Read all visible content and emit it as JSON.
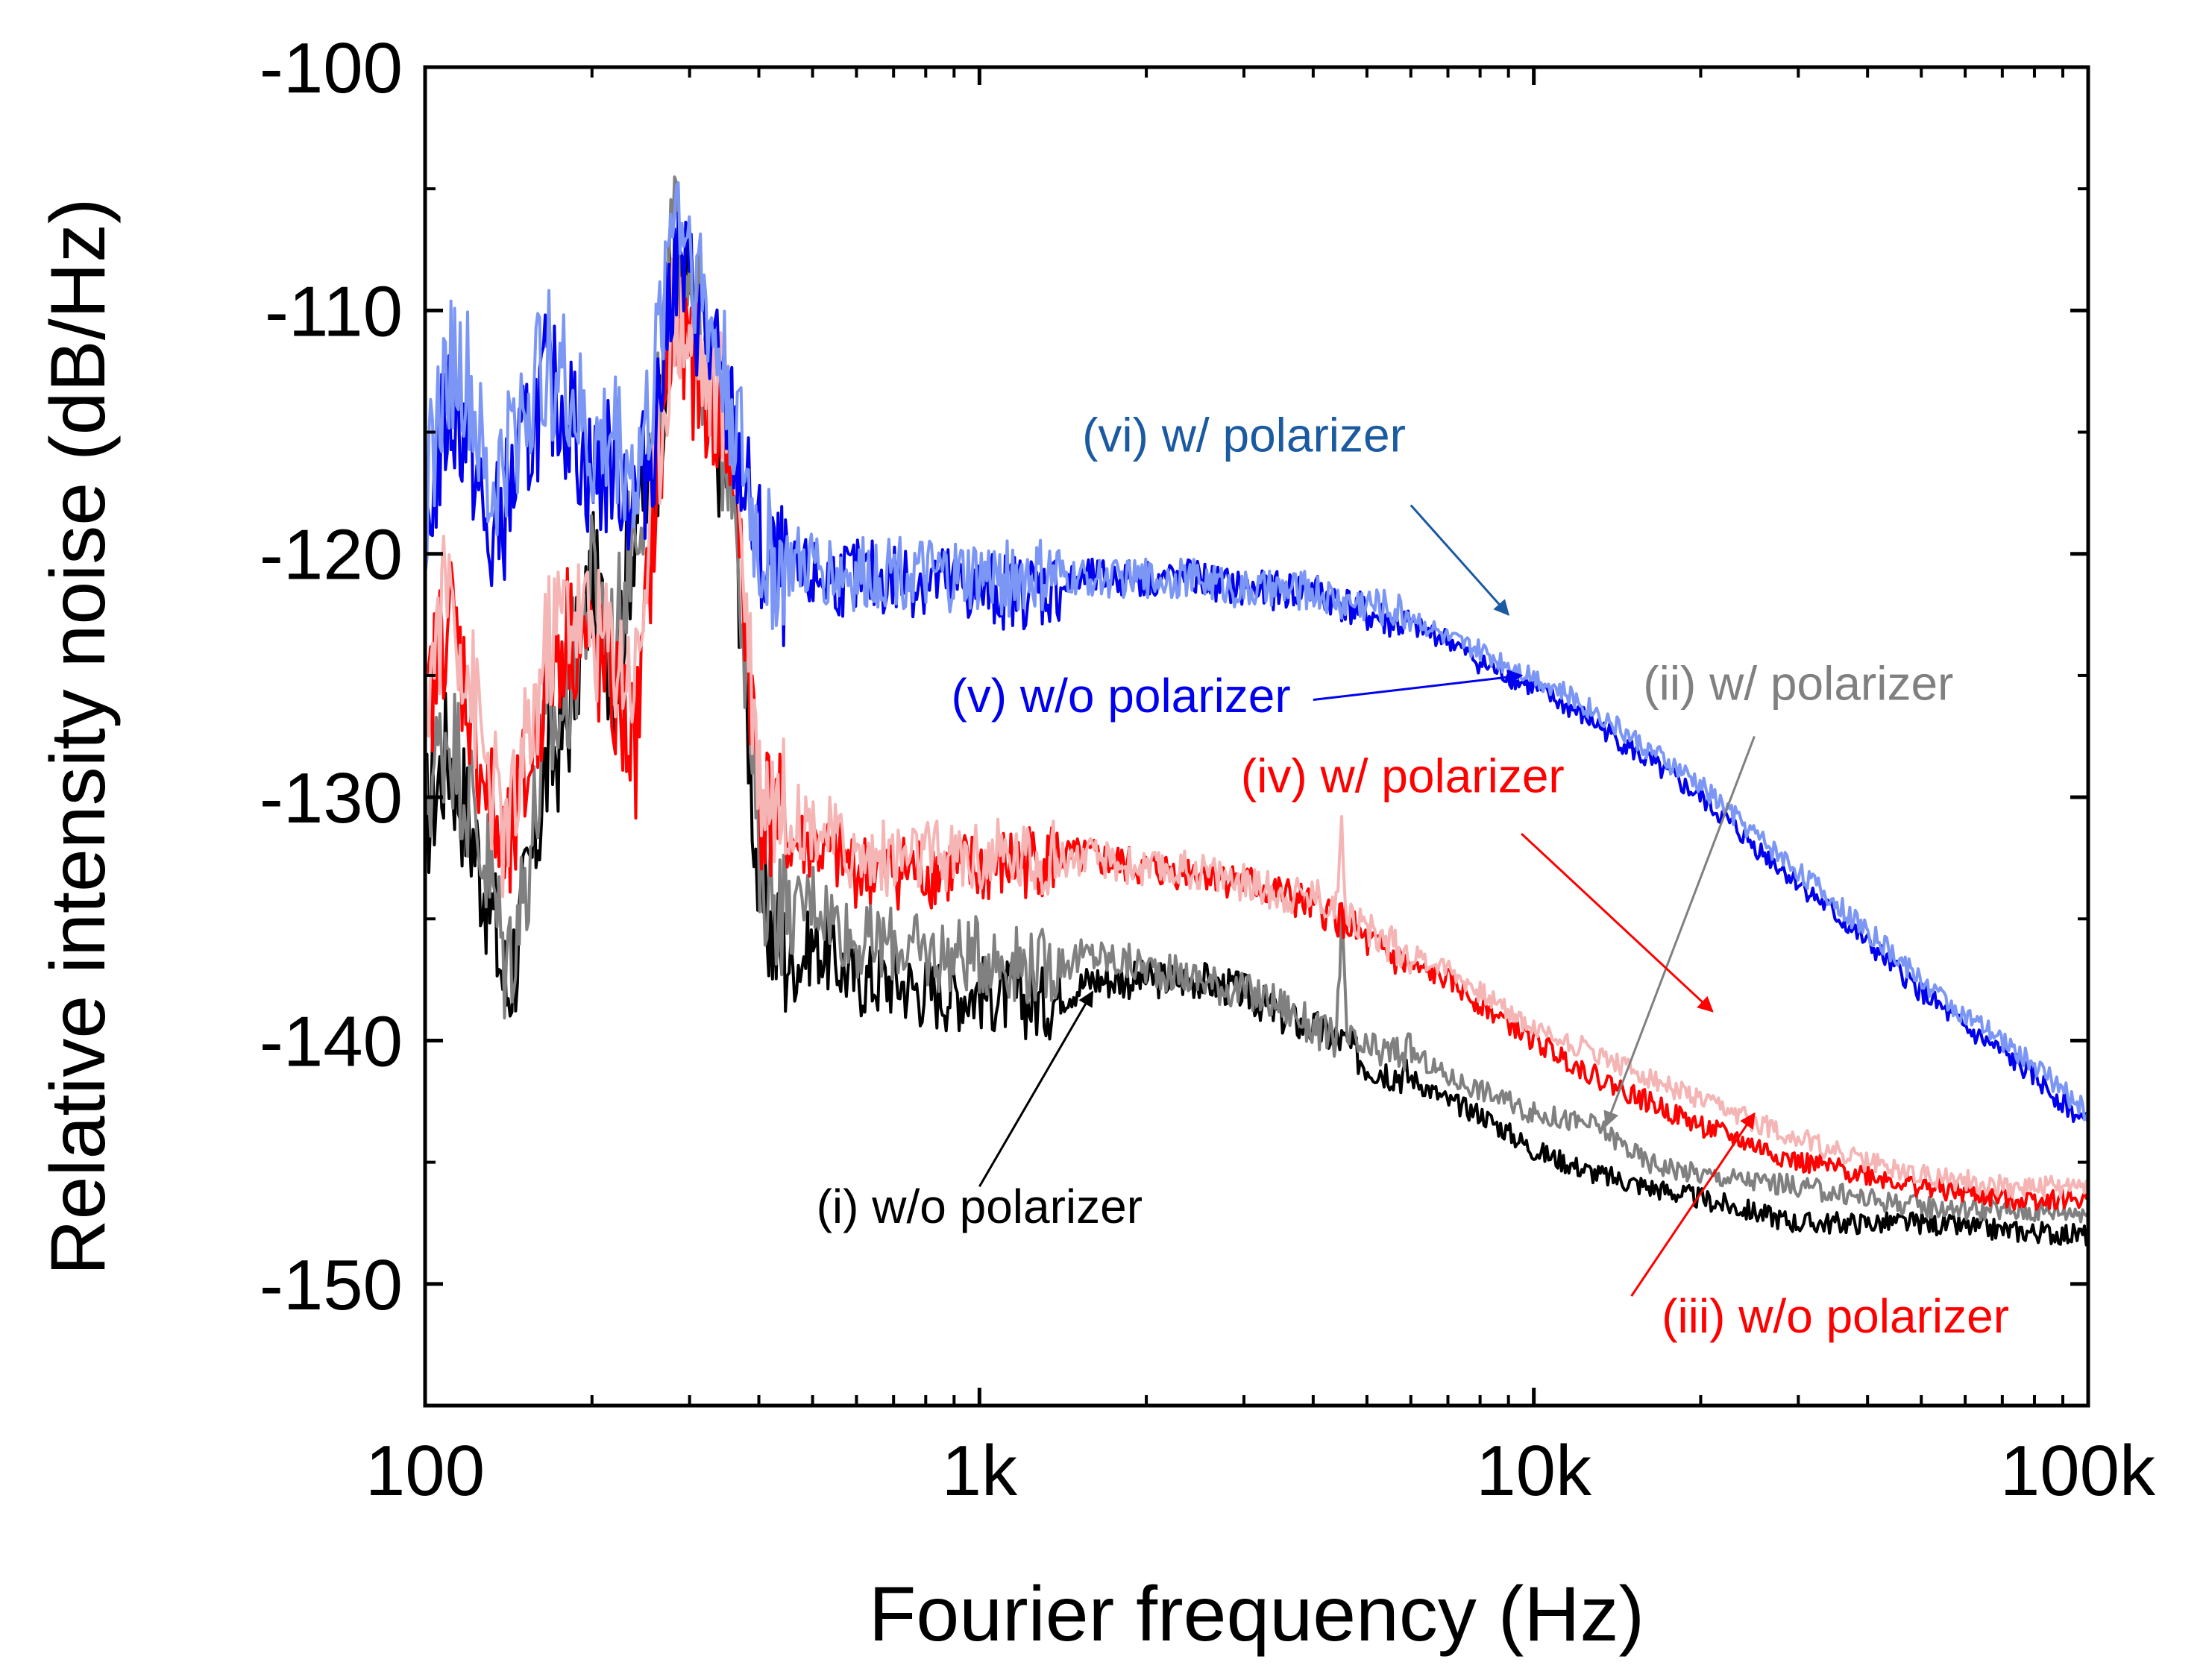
{
  "chart_data": {
    "type": "line",
    "title": "",
    "xlabel": "Fourier frequency (Hz)",
    "ylabel": "Relative intensity noise (dB/Hz)",
    "xscale": "log",
    "xlim": [
      100,
      100000
    ],
    "ylim": [
      -155,
      -100
    ],
    "xticks": [
      {
        "value": 100,
        "label": "100"
      },
      {
        "value": 1000,
        "label": "1k"
      },
      {
        "value": 10000,
        "label": "10k"
      },
      {
        "value": 100000,
        "label": "100k"
      }
    ],
    "yticks": [
      {
        "value": -100,
        "label": "-100"
      },
      {
        "value": -110,
        "label": "-110"
      },
      {
        "value": -120,
        "label": "-120"
      },
      {
        "value": -130,
        "label": "-130"
      },
      {
        "value": -140,
        "label": "-140"
      },
      {
        "value": -150,
        "label": "-150"
      }
    ],
    "grid": false,
    "series": [
      {
        "name": "(i) w/o polarizer",
        "color": "#000000",
        "x": [
          100,
          110,
          120,
          130,
          140,
          150,
          165,
          180,
          200,
          220,
          240,
          260,
          280,
          300,
          330,
          360,
          400,
          430,
          460,
          500,
          600,
          700,
          800,
          1000,
          1300,
          1600,
          2000,
          2500,
          3000,
          3500,
          4000,
          4500,
          5000,
          6000,
          7000,
          8000,
          10000,
          13000,
          16000,
          20000,
          30000,
          40000,
          50000,
          70000,
          100000
        ],
        "y": [
          -131,
          -128,
          -131,
          -134,
          -138,
          -135,
          -129,
          -127,
          -121,
          -125,
          -118,
          -117,
          -108,
          -109,
          -115,
          -117,
          -134,
          -136,
          -137,
          -136,
          -137.5,
          -137.5,
          -138,
          -138,
          -138.5,
          -137.5,
          -137.5,
          -137.5,
          -138,
          -139,
          -139.5,
          -140,
          -141,
          -141.5,
          -142.5,
          -143,
          -144.5,
          -145.5,
          -146,
          -146.5,
          -147.5,
          -147.5,
          -147.5,
          -147.8,
          -148
        ]
      },
      {
        "name": "(ii) w/ polarizer",
        "color": "#808080",
        "x": [
          100,
          110,
          120,
          130,
          140,
          150,
          165,
          180,
          200,
          220,
          240,
          260,
          280,
          300,
          330,
          360,
          400,
          430,
          460,
          500,
          600,
          700,
          800,
          1000,
          1300,
          1600,
          2000,
          2500,
          3000,
          3500,
          4000,
          4400,
          4500,
          4600,
          5000,
          6000,
          7000,
          8000,
          10000,
          13000,
          16000,
          20000,
          30000,
          40000,
          50000,
          70000,
          100000
        ],
        "y": [
          -130,
          -127,
          -130,
          -133,
          -137,
          -134,
          -128,
          -126,
          -121,
          -124,
          -118,
          -116,
          -107,
          -108,
          -115,
          -116,
          -133,
          -134,
          -135,
          -134,
          -136,
          -136,
          -136.5,
          -136.5,
          -137,
          -136.5,
          -137,
          -137.5,
          -138,
          -138.5,
          -139.5,
          -140,
          -135,
          -140,
          -140.5,
          -140.5,
          -141.5,
          -142,
          -143,
          -143.5,
          -145,
          -145.5,
          -146,
          -146.5,
          -146.8,
          -147,
          -147
        ]
      },
      {
        "name": "(iii) w/o polarizer",
        "color": "#ff0000",
        "x": [
          100,
          110,
          120,
          130,
          140,
          150,
          165,
          180,
          200,
          220,
          240,
          260,
          280,
          300,
          330,
          360,
          400,
          430,
          460,
          500,
          600,
          700,
          800,
          1000,
          1300,
          1600,
          2000,
          2500,
          3000,
          3500,
          4000,
          4500,
          5000,
          6000,
          7000,
          8000,
          10000,
          13000,
          16000,
          20000,
          30000,
          40000,
          50000,
          70000,
          100000
        ],
        "y": [
          -127,
          -122,
          -126,
          -130,
          -133,
          -130,
          -125,
          -123,
          -124,
          -126,
          -128,
          -118,
          -111,
          -112,
          -114,
          -116,
          -130,
          -131,
          -132,
          -132,
          -133,
          -133,
          -133,
          -133,
          -132.5,
          -132.5,
          -133,
          -133,
          -133.5,
          -134,
          -134.5,
          -135,
          -136,
          -137,
          -137.5,
          -138.5,
          -140,
          -141.5,
          -142.5,
          -143.5,
          -145,
          -145.5,
          -146,
          -146.5,
          -146.5
        ]
      },
      {
        "name": "(iv) w/ polarizer",
        "color": "#f5b5b5",
        "x": [
          100,
          110,
          120,
          130,
          140,
          150,
          165,
          180,
          200,
          220,
          240,
          260,
          280,
          300,
          330,
          360,
          400,
          430,
          460,
          500,
          600,
          700,
          800,
          1000,
          1300,
          1600,
          2000,
          2500,
          3000,
          3500,
          4000,
          4400,
          4500,
          4600,
          5000,
          6000,
          7000,
          8000,
          10000,
          13000,
          16000,
          20000,
          30000,
          40000,
          50000,
          70000,
          100000
        ],
        "y": [
          -126,
          -121,
          -125,
          -129,
          -132,
          -129,
          -124,
          -122,
          -123,
          -124,
          -125,
          -117,
          -110,
          -111,
          -113,
          -115,
          -129,
          -130,
          -131,
          -131,
          -132.5,
          -132.5,
          -132.5,
          -132.5,
          -132.5,
          -132.5,
          -133,
          -133,
          -133.5,
          -134,
          -134,
          -134.5,
          -131.5,
          -134.5,
          -135.5,
          -136.5,
          -137,
          -138,
          -139.5,
          -140.5,
          -141.5,
          -142.5,
          -144,
          -145,
          -145.5,
          -146,
          -146
        ]
      },
      {
        "name": "(v) w/o polarizer",
        "color": "#0000ee",
        "x": [
          100,
          110,
          120,
          130,
          140,
          150,
          165,
          180,
          200,
          220,
          240,
          260,
          280,
          300,
          330,
          360,
          400,
          430,
          460,
          500,
          600,
          700,
          800,
          1000,
          1300,
          1600,
          2000,
          2500,
          3000,
          3500,
          4000,
          4500,
          5000,
          6000,
          7000,
          8000,
          10000,
          13000,
          16000,
          20000,
          25000,
          30000,
          40000,
          50000,
          60000,
          70000,
          80000,
          100000
        ],
        "y": [
          -119,
          -114,
          -115,
          -120,
          -118,
          -116,
          -113,
          -114,
          -117,
          -116,
          -118,
          -115,
          -108,
          -109,
          -112,
          -115,
          -120,
          -121,
          -121,
          -121,
          -121,
          -121,
          -121,
          -121.5,
          -121.5,
          -121,
          -121,
          -121,
          -121.5,
          -121.5,
          -121.5,
          -122,
          -122.5,
          -123,
          -123.5,
          -124.5,
          -125.5,
          -127,
          -128.5,
          -130,
          -132,
          -133.5,
          -136,
          -138,
          -139.5,
          -140.5,
          -141.5,
          -143.5
        ]
      },
      {
        "name": "(vi) w/ polarizer",
        "color": "#7b96f5",
        "x": [
          100,
          110,
          120,
          130,
          140,
          150,
          165,
          180,
          200,
          220,
          240,
          260,
          280,
          300,
          330,
          360,
          400,
          430,
          460,
          500,
          600,
          700,
          800,
          1000,
          1300,
          1600,
          2000,
          2500,
          3000,
          3500,
          4000,
          4500,
          5000,
          6000,
          7000,
          8000,
          10000,
          13000,
          16000,
          20000,
          25000,
          30000,
          40000,
          50000,
          60000,
          70000,
          80000,
          100000
        ],
        "y": [
          -118,
          -112,
          -113,
          -118,
          -116,
          -114,
          -112,
          -113,
          -116,
          -115,
          -117,
          -113,
          -105,
          -107,
          -111,
          -114,
          -120,
          -120.5,
          -120.5,
          -120.5,
          -121,
          -120.5,
          -121,
          -121,
          -121,
          -121,
          -121,
          -121,
          -121.5,
          -121.5,
          -121.5,
          -122,
          -122,
          -122.5,
          -123.5,
          -124,
          -125,
          -126.5,
          -128,
          -129.5,
          -131.5,
          -133,
          -135.5,
          -137.5,
          -139,
          -140,
          -141,
          -143
        ]
      }
    ],
    "annotations": [
      {
        "text": "(i) w/o polarizer",
        "color": "#000000",
        "label_x": 1000,
        "label_y": -147.5,
        "arrow_from_x": 1000,
        "arrow_from_y": -146,
        "arrow_to_x": 1600,
        "arrow_to_y": -138
      },
      {
        "text": "(ii) w/ polarizer",
        "color": "#808080",
        "label_x": 30000,
        "label_y": -126,
        "arrow_from_x": 25000,
        "arrow_from_y": -127.5,
        "arrow_to_x": 13500,
        "arrow_to_y": -143.5
      },
      {
        "text": "(iii) w/o polarizer",
        "color": "#ff0000",
        "label_x": 35000,
        "label_y": -152,
        "arrow_from_x": 15000,
        "arrow_from_y": -150.5,
        "arrow_to_x": 25000,
        "arrow_to_y": -143
      },
      {
        "text": "(iv) w/ polarizer",
        "color": "#ff0000",
        "label_x": 5800,
        "label_y": -129.8,
        "arrow_from_x": 9500,
        "arrow_from_y": -131.5,
        "arrow_to_x": 21000,
        "arrow_to_y": -138.8
      },
      {
        "text": "(v) w/o polarizer",
        "color": "#0000ee",
        "label_x": 1800,
        "label_y": -126.5,
        "arrow_from_x": 4000,
        "arrow_from_y": -126,
        "arrow_to_x": 9500,
        "arrow_to_y": -125
      },
      {
        "text": "(vi) w/ polarizer",
        "color": "#1a5aa0",
        "label_x": 3000,
        "label_y": -115.8,
        "arrow_from_x": 6000,
        "arrow_from_y": -118,
        "arrow_to_x": 9000,
        "arrow_to_y": -122.5
      }
    ]
  }
}
